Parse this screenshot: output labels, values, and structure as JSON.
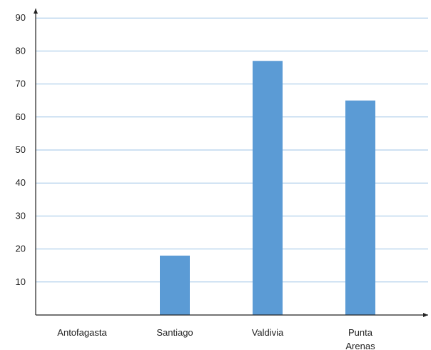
{
  "chart_data": {
    "type": "bar",
    "title": "",
    "xlabel": "",
    "ylabel": "",
    "categories": [
      "Antofagasta",
      "Santiago",
      "Valdivia",
      "Punta Arenas"
    ],
    "category_label_lines": [
      [
        "Antofagasta"
      ],
      [
        "Santiago"
      ],
      [
        "Valdivia"
      ],
      [
        "Punta",
        "Arenas"
      ]
    ],
    "values": [
      0,
      18,
      77,
      65
    ],
    "ylim": [
      0,
      95
    ],
    "yticks": [
      "10",
      "20",
      "30",
      "40",
      "50",
      "60",
      "70",
      "80",
      "90"
    ],
    "grid": true,
    "legend": "none",
    "colors": {
      "bar": "#5b9bd5",
      "grid": "#9dc3e6",
      "axis": "#222222"
    }
  }
}
